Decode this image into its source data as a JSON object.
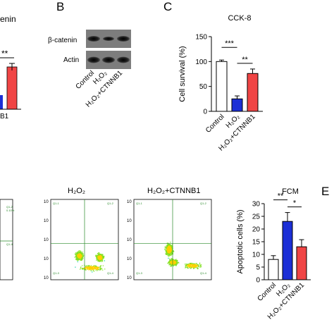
{
  "panels": {
    "A_fragment": {
      "title_fragment": "enin",
      "sig": "**",
      "x_fragment": "B1"
    },
    "B": {
      "letter": "B",
      "rows": [
        "β-catenin",
        "Actin"
      ],
      "lanes": [
        "Control",
        "H₂O₂",
        "H₂O₂+CTNNB1"
      ]
    },
    "C": {
      "letter": "C",
      "title": "CCK-8",
      "ylabel": "Cell survival (%)"
    },
    "D": {
      "flow_titles": [
        "H₂O₂",
        "H₂O₂+CTNNB1"
      ],
      "left_ticks": [
        "10",
        "10",
        "10",
        "10",
        "10"
      ]
    },
    "FCM": {
      "title": "FCM",
      "ylabel": "Apoptotic cells (%)"
    },
    "E": {
      "letter": "E"
    }
  },
  "chart_data": [
    {
      "type": "bar",
      "id": "cck8",
      "title": "CCK-8",
      "ylabel": "Cell survival (%)",
      "categories": [
        "Control",
        "H₂O₂",
        "H₂O₂+CTNNB1"
      ],
      "values": [
        100,
        25,
        76
      ],
      "errors": [
        3,
        6,
        9
      ],
      "colors": [
        "#ffffff",
        "#1c2fd6",
        "#f04545"
      ],
      "yticks": [
        0,
        50,
        100,
        150
      ],
      "ylim": [
        0,
        150
      ],
      "significance": [
        {
          "from": 0,
          "to": 1,
          "label": "***"
        },
        {
          "from": 1,
          "to": 2,
          "label": "**"
        }
      ]
    },
    {
      "type": "bar",
      "id": "fcm",
      "title": "FCM",
      "ylabel": "Apoptotic cells (%)",
      "categories": [
        "Control",
        "H₂O₂",
        "H₂O₂+CTNNB1"
      ],
      "values": [
        8,
        23,
        13
      ],
      "errors": [
        1.5,
        3.5,
        2.8
      ],
      "colors": [
        "#ffffff",
        "#1c2fd6",
        "#f04545"
      ],
      "yticks": [
        0,
        5,
        10,
        15,
        20,
        25,
        30
      ],
      "ylim": [
        0,
        30
      ],
      "significance": [
        {
          "from": 0,
          "to": 1,
          "label": "**"
        },
        {
          "from": 1,
          "to": 2,
          "label": "*"
        }
      ]
    }
  ]
}
